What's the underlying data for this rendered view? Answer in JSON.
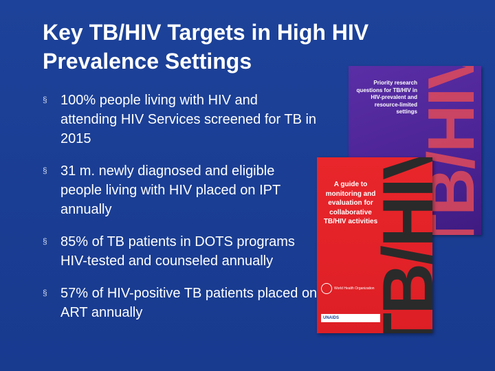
{
  "slide": {
    "title": "Key TB/HIV Targets in High HIV Prevalence Settings",
    "bullet_marker": "§",
    "bullets": [
      "100% people living with HIV and attending HIV Services screened for TB in 2015",
      "31 m. newly diagnosed and eligible people living with HIV placed on IPT annually",
      "85% of TB patients in DOTS programs HIV-tested and counseled annually",
      "57% of HIV-positive TB patients placed on ART annually"
    ]
  },
  "covers": {
    "back": {
      "title": "Priority research questions for TB/HIV in HIV-prevalent and resource-limited settings",
      "vertical_word": "TB/HIV",
      "color": "#4b2394"
    },
    "front": {
      "title": "A guide to monitoring and evaluation for collaborative TB/HIV activities",
      "vertical_word": "TB/HIV",
      "color": "#dd1f25",
      "logo_who": "World Health Organization",
      "logo_unaids": "UNAIDS"
    }
  },
  "colors": {
    "background": "#1b3f94",
    "text": "#ffffff"
  }
}
